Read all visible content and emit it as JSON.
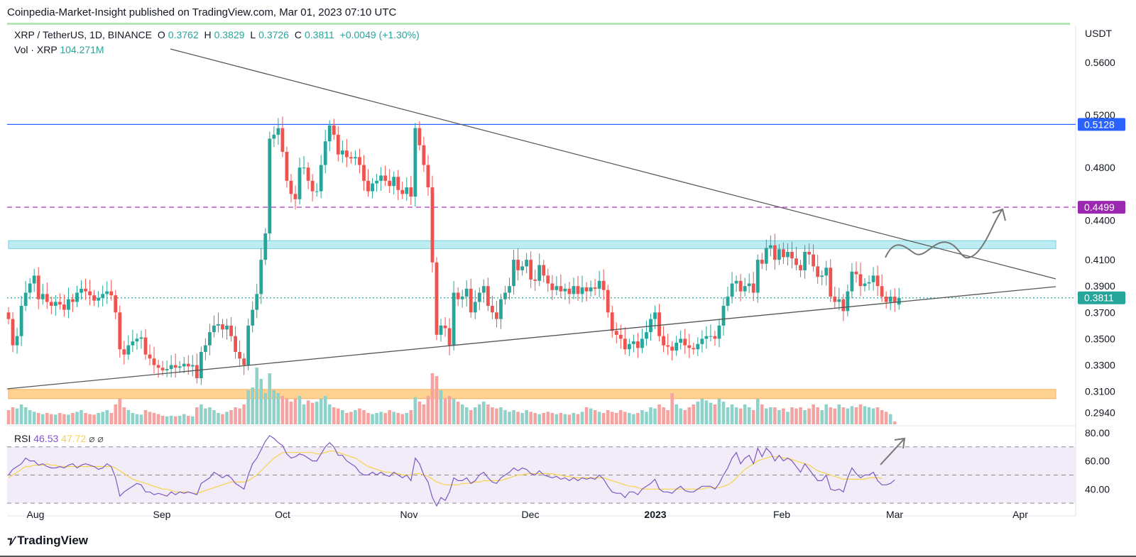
{
  "header": {
    "publish_text": "Coinpedia-Market-Insight published on TradingView.com, Mar 01, 2023 07:10 UTC"
  },
  "legend": {
    "symbol": "XRP / TetherUS, 1D, BINANCE",
    "o_label": "O",
    "o_value": "0.3762",
    "h_label": "H",
    "h_value": "0.3829",
    "l_label": "L",
    "l_value": "0.3726",
    "c_label": "C",
    "c_value": "0.3811",
    "change": "+0.0049 (+1.30%)",
    "vol_label": "Vol · XRP",
    "vol_value": "104.271M",
    "rsi_label": "RSI",
    "rsi_value": "46.53",
    "rsi_ma_value": "47.72",
    "rsi_extra": "⌀ ⌀"
  },
  "footer": {
    "brand": "TradingView",
    "logo_icon": "tradingview-logo"
  },
  "colors": {
    "up": "#26a69a",
    "down": "#ef5350",
    "resistance_line": "#2962ff",
    "dashed_level": "#9c27b0",
    "rsi_line": "#7e57c2",
    "rsi_ma": "#f7d34a",
    "cyan_zone": "#b2ebf2",
    "orange_zone": "#ffcc80"
  },
  "chart_data": {
    "type": "candlestick",
    "currency": "USDT",
    "price_axis": {
      "ylim": [
        0.285,
        0.575
      ],
      "ticks": [
        "0.5600",
        "0.5200",
        "0.4800",
        "0.4400",
        "0.4100",
        "0.3900",
        "0.3700",
        "0.3500",
        "0.3300",
        "0.3100",
        "0.2940"
      ],
      "tick_values": [
        0.56,
        0.52,
        0.48,
        0.44,
        0.41,
        0.39,
        0.37,
        0.35,
        0.33,
        0.31,
        0.294
      ]
    },
    "price_labels": [
      {
        "value": 0.5128,
        "text": "0.5128",
        "color": "#2962ff"
      },
      {
        "value": 0.4499,
        "text": "0.4499",
        "color": "#9c27b0"
      },
      {
        "value": 0.3811,
        "text": "0.3811",
        "color": "#26a69a"
      }
    ],
    "levels": [
      {
        "value": 0.5128,
        "style": "solid",
        "color": "#2962ff"
      },
      {
        "value": 0.4499,
        "style": "dashed",
        "color": "#9c27b0"
      },
      {
        "value": 0.3811,
        "style": "dotted",
        "color": "#26a69a"
      }
    ],
    "zones": [
      {
        "from": 0.4185,
        "to": 0.4245,
        "color": "#b2ebf2"
      },
      {
        "from": 0.3045,
        "to": 0.3115,
        "color": "#ffcc80"
      }
    ],
    "time_axis": {
      "labels": [
        "Aug",
        "Sep",
        "Oct",
        "Nov",
        "Dec",
        "2023",
        "Feb",
        "Mar",
        "Apr"
      ],
      "bold": [
        "2023"
      ]
    },
    "candles": {
      "start_date": "2022-07-26",
      "close": [
        0.365,
        0.345,
        0.352,
        0.375,
        0.385,
        0.392,
        0.398,
        0.38,
        0.384,
        0.378,
        0.375,
        0.378,
        0.376,
        0.372,
        0.38,
        0.378,
        0.385,
        0.388,
        0.386,
        0.383,
        0.379,
        0.381,
        0.384,
        0.386,
        0.383,
        0.37,
        0.342,
        0.338,
        0.345,
        0.348,
        0.35,
        0.351,
        0.338,
        0.335,
        0.33,
        0.328,
        0.326,
        0.327,
        0.33,
        0.328,
        0.329,
        0.331,
        0.329,
        0.33,
        0.32,
        0.34,
        0.345,
        0.355,
        0.36,
        0.361,
        0.357,
        0.36,
        0.352,
        0.34,
        0.335,
        0.33,
        0.36,
        0.372,
        0.384,
        0.41,
        0.43,
        0.502,
        0.505,
        0.51,
        0.492,
        0.47,
        0.46,
        0.456,
        0.48,
        0.48,
        0.47,
        0.462,
        0.462,
        0.482,
        0.5,
        0.512,
        0.505,
        0.49,
        0.493,
        0.488,
        0.487,
        0.488,
        0.482,
        0.47,
        0.462,
        0.468,
        0.47,
        0.474,
        0.47,
        0.466,
        0.473,
        0.463,
        0.46,
        0.465,
        0.458,
        0.51,
        0.497,
        0.482,
        0.465,
        0.408,
        0.353,
        0.36,
        0.358,
        0.345,
        0.385,
        0.38,
        0.382,
        0.388,
        0.37,
        0.378,
        0.385,
        0.39,
        0.375,
        0.37,
        0.365,
        0.38,
        0.385,
        0.39,
        0.41,
        0.402,
        0.405,
        0.41,
        0.395,
        0.394,
        0.406,
        0.398,
        0.392,
        0.387,
        0.39,
        0.386,
        0.388,
        0.384,
        0.39,
        0.384,
        0.389,
        0.386,
        0.389,
        0.388,
        0.394,
        0.387,
        0.37,
        0.356,
        0.353,
        0.35,
        0.342,
        0.346,
        0.348,
        0.343,
        0.35,
        0.355,
        0.365,
        0.37,
        0.352,
        0.345,
        0.344,
        0.341,
        0.347,
        0.35,
        0.345,
        0.343,
        0.342,
        0.346,
        0.35,
        0.352,
        0.352,
        0.35,
        0.36,
        0.375,
        0.382,
        0.392,
        0.394,
        0.386,
        0.39,
        0.392,
        0.385,
        0.41,
        0.407,
        0.419,
        0.421,
        0.41,
        0.418,
        0.412,
        0.416,
        0.411,
        0.406,
        0.402,
        0.416,
        0.414,
        0.405,
        0.397,
        0.398,
        0.404,
        0.382,
        0.378,
        0.38,
        0.371,
        0.386,
        0.401,
        0.399,
        0.39,
        0.392,
        0.393,
        0.398,
        0.39,
        0.382,
        0.378,
        0.382,
        0.378,
        0.381
      ],
      "open": [
        0.37,
        0.365,
        0.345,
        0.352,
        0.375,
        0.385,
        0.392,
        0.398,
        0.38,
        0.384,
        0.378,
        0.375,
        0.378,
        0.376,
        0.372,
        0.38,
        0.378,
        0.385,
        0.388,
        0.386,
        0.383,
        0.379,
        0.381,
        0.384,
        0.386,
        0.383,
        0.37,
        0.342,
        0.338,
        0.345,
        0.348,
        0.35,
        0.351,
        0.338,
        0.335,
        0.33,
        0.328,
        0.326,
        0.327,
        0.33,
        0.328,
        0.329,
        0.331,
        0.329,
        0.33,
        0.32,
        0.34,
        0.345,
        0.355,
        0.36,
        0.361,
        0.357,
        0.36,
        0.352,
        0.34,
        0.335,
        0.33,
        0.36,
        0.372,
        0.384,
        0.41,
        0.43,
        0.502,
        0.505,
        0.51,
        0.492,
        0.47,
        0.46,
        0.456,
        0.48,
        0.48,
        0.47,
        0.462,
        0.462,
        0.482,
        0.5,
        0.512,
        0.505,
        0.49,
        0.493,
        0.488,
        0.487,
        0.488,
        0.482,
        0.47,
        0.462,
        0.468,
        0.47,
        0.474,
        0.47,
        0.466,
        0.473,
        0.463,
        0.46,
        0.465,
        0.458,
        0.51,
        0.497,
        0.482,
        0.465,
        0.408,
        0.353,
        0.36,
        0.358,
        0.345,
        0.385,
        0.38,
        0.382,
        0.388,
        0.37,
        0.378,
        0.385,
        0.39,
        0.375,
        0.37,
        0.365,
        0.38,
        0.385,
        0.39,
        0.41,
        0.402,
        0.405,
        0.41,
        0.395,
        0.394,
        0.406,
        0.398,
        0.392,
        0.387,
        0.39,
        0.386,
        0.388,
        0.384,
        0.39,
        0.384,
        0.389,
        0.386,
        0.389,
        0.388,
        0.394,
        0.387,
        0.37,
        0.356,
        0.353,
        0.35,
        0.342,
        0.346,
        0.348,
        0.343,
        0.35,
        0.355,
        0.365,
        0.37,
        0.352,
        0.345,
        0.344,
        0.341,
        0.347,
        0.35,
        0.345,
        0.343,
        0.342,
        0.346,
        0.35,
        0.352,
        0.352,
        0.35,
        0.36,
        0.375,
        0.382,
        0.392,
        0.394,
        0.386,
        0.39,
        0.392,
        0.385,
        0.41,
        0.407,
        0.419,
        0.421,
        0.41,
        0.418,
        0.412,
        0.416,
        0.411,
        0.406,
        0.402,
        0.416,
        0.414,
        0.405,
        0.397,
        0.398,
        0.404,
        0.382,
        0.378,
        0.38,
        0.371,
        0.386,
        0.401,
        0.399,
        0.39,
        0.392,
        0.393,
        0.398,
        0.39,
        0.382,
        0.378,
        0.382,
        0.376
      ]
    },
    "volume": {
      "relative": [
        0.25,
        0.3,
        0.28,
        0.35,
        0.3,
        0.25,
        0.22,
        0.2,
        0.18,
        0.2,
        0.18,
        0.17,
        0.2,
        0.18,
        0.17,
        0.2,
        0.22,
        0.25,
        0.2,
        0.18,
        0.17,
        0.2,
        0.22,
        0.25,
        0.2,
        0.35,
        0.45,
        0.3,
        0.25,
        0.2,
        0.18,
        0.17,
        0.25,
        0.22,
        0.2,
        0.18,
        0.15,
        0.14,
        0.15,
        0.14,
        0.15,
        0.18,
        0.15,
        0.14,
        0.3,
        0.35,
        0.28,
        0.3,
        0.25,
        0.2,
        0.18,
        0.22,
        0.25,
        0.3,
        0.28,
        0.35,
        0.6,
        0.65,
        1.0,
        0.8,
        0.55,
        0.9,
        0.6,
        0.55,
        0.5,
        0.45,
        0.4,
        0.45,
        0.5,
        0.35,
        0.42,
        0.38,
        0.4,
        0.45,
        0.5,
        0.35,
        0.3,
        0.28,
        0.25,
        0.2,
        0.22,
        0.25,
        0.28,
        0.25,
        0.2,
        0.18,
        0.2,
        0.22,
        0.2,
        0.25,
        0.22,
        0.2,
        0.18,
        0.2,
        0.25,
        0.48,
        0.4,
        0.35,
        0.5,
        0.9,
        0.85,
        0.6,
        0.45,
        0.5,
        0.45,
        0.4,
        0.35,
        0.3,
        0.25,
        0.3,
        0.35,
        0.4,
        0.35,
        0.3,
        0.28,
        0.3,
        0.25,
        0.22,
        0.25,
        0.22,
        0.2,
        0.25,
        0.22,
        0.2,
        0.18,
        0.2,
        0.22,
        0.2,
        0.18,
        0.2,
        0.18,
        0.17,
        0.2,
        0.18,
        0.22,
        0.3,
        0.28,
        0.25,
        0.22,
        0.2,
        0.25,
        0.22,
        0.2,
        0.25,
        0.22,
        0.2,
        0.18,
        0.2,
        0.25,
        0.22,
        0.3,
        0.28,
        0.35,
        0.3,
        0.25,
        0.55,
        0.35,
        0.28,
        0.25,
        0.3,
        0.35,
        0.4,
        0.45,
        0.42,
        0.38,
        0.35,
        0.45,
        0.4,
        0.3,
        0.35,
        0.3,
        0.28,
        0.35,
        0.3,
        0.25,
        0.45,
        0.35,
        0.28,
        0.3,
        0.3,
        0.25,
        0.28,
        0.22,
        0.3,
        0.28,
        0.3,
        0.25,
        0.28,
        0.35,
        0.3,
        0.25,
        0.35,
        0.3,
        0.28,
        0.35,
        0.3,
        0.28,
        0.32,
        0.3,
        0.35,
        0.32,
        0.3,
        0.28,
        0.3,
        0.25,
        0.22,
        0.18,
        0.05
      ]
    },
    "rsi": {
      "ylim": [
        22,
        85
      ],
      "ticks": [
        "80.00",
        "60.00",
        "40.00"
      ],
      "tick_values": [
        80,
        60,
        40
      ],
      "band": [
        30,
        70
      ],
      "values": [
        50,
        54,
        56,
        58,
        62,
        60,
        60,
        57,
        58,
        56,
        55,
        55,
        56,
        55,
        57,
        58,
        55,
        57,
        58,
        57,
        56,
        54,
        55,
        58,
        56,
        48,
        35,
        38,
        40,
        42,
        44,
        43,
        38,
        38,
        36,
        37,
        36,
        35,
        38,
        36,
        38,
        37,
        38,
        37,
        36,
        44,
        46,
        48,
        52,
        50,
        48,
        50,
        48,
        44,
        42,
        40,
        50,
        58,
        62,
        68,
        74,
        78,
        76,
        73,
        71,
        65,
        62,
        63,
        65,
        64,
        62,
        60,
        60,
        65,
        70,
        73,
        70,
        64,
        64,
        60,
        58,
        56,
        52,
        50,
        50,
        52,
        50,
        52,
        50,
        49,
        52,
        50,
        48,
        50,
        46,
        62,
        58,
        50,
        45,
        34,
        28,
        34,
        32,
        38,
        48,
        46,
        46,
        48,
        44,
        46,
        50,
        52,
        48,
        45,
        44,
        48,
        50,
        52,
        55,
        53,
        55,
        54,
        51,
        50,
        53,
        50,
        49,
        48,
        49,
        47,
        48,
        46,
        48,
        46,
        48,
        47,
        48,
        47,
        50,
        47,
        42,
        38,
        37,
        37,
        34,
        38,
        38,
        36,
        40,
        42,
        44,
        47,
        40,
        38,
        38,
        37,
        40,
        42,
        39,
        38,
        38,
        40,
        42,
        42,
        42,
        40,
        44,
        50,
        55,
        62,
        66,
        58,
        62,
        64,
        58,
        69,
        63,
        69,
        66,
        60,
        64,
        60,
        62,
        60,
        56,
        52,
        58,
        54,
        50,
        46,
        46,
        50,
        40,
        39,
        40,
        38,
        48,
        55,
        51,
        48,
        50,
        50,
        52,
        46,
        43,
        43,
        44,
        46.53
      ],
      "ma": [
        48,
        50,
        52,
        54,
        56,
        56,
        57,
        57,
        57,
        58,
        57,
        57,
        56,
        56,
        56,
        56,
        56,
        56,
        56,
        56,
        56,
        56,
        56,
        56,
        56,
        55,
        53,
        51,
        49,
        47,
        46,
        45,
        44,
        43,
        42,
        41,
        40,
        40,
        39,
        38,
        38,
        38,
        38,
        37,
        37,
        38,
        39,
        40,
        41,
        42,
        43,
        44,
        45,
        45,
        45,
        45,
        46,
        48,
        50,
        53,
        56,
        59,
        62,
        64,
        66,
        66,
        66,
        66,
        66,
        66,
        66,
        66,
        65,
        65,
        66,
        67,
        67,
        66,
        65,
        64,
        63,
        62,
        60,
        58,
        56,
        55,
        54,
        53,
        52,
        52,
        51,
        51,
        50,
        50,
        50,
        51,
        51,
        50,
        49,
        47,
        45,
        44,
        43,
        43,
        43,
        43,
        44,
        44,
        44,
        45,
        45,
        46,
        46,
        46,
        46,
        46,
        47,
        48,
        49,
        50,
        50,
        51,
        51,
        51,
        51,
        51,
        51,
        51,
        50,
        50,
        49,
        49,
        48,
        48,
        48,
        48,
        48,
        48,
        48,
        48,
        47,
        46,
        45,
        44,
        43,
        42,
        42,
        41,
        40,
        40,
        40,
        40,
        40,
        40,
        40,
        40,
        40,
        40,
        40,
        40,
        40,
        40,
        40,
        41,
        41,
        41,
        41,
        42,
        43,
        45,
        48,
        51,
        54,
        56,
        58,
        60,
        61,
        62,
        63,
        63,
        63,
        62,
        62,
        61,
        60,
        59,
        58,
        57,
        55,
        53,
        52,
        51,
        50,
        49,
        48,
        47,
        47,
        47,
        47,
        47,
        47,
        48,
        48,
        48,
        47.72
      ]
    }
  }
}
